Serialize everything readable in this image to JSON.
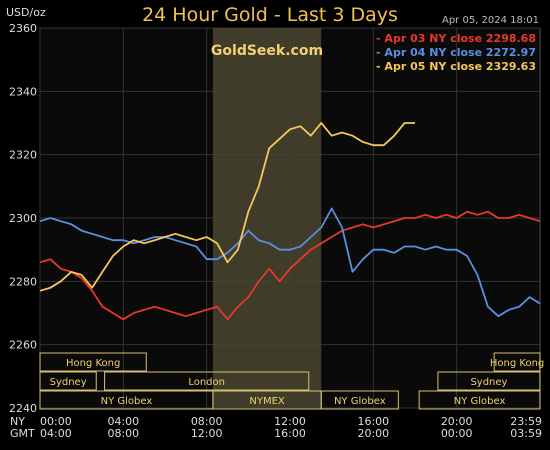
{
  "header": {
    "unit": "USD/oz",
    "title": "24 Hour Gold - Last 3 Days",
    "date": "Apr 05, 2024  18:01"
  },
  "brand": {
    "watermark": "GoldSeek.com"
  },
  "chart_data": {
    "type": "line",
    "title": "24 Hour Gold - Last 3 Days",
    "ylabel": "USD/oz",
    "ylim": [
      2240,
      2360
    ],
    "yticks": [
      2240,
      2260,
      2280,
      2300,
      2320,
      2340,
      2360
    ],
    "grid": true,
    "legend_position": "top-right",
    "x_hours_ny": [
      0,
      24
    ],
    "x_tick_labels": {
      "ny": [
        "00:00",
        "04:00",
        "08:00",
        "12:00",
        "16:00",
        "20:00",
        "23:59"
      ],
      "gmt": [
        "04:00",
        "08:00",
        "12:00",
        "16:00",
        "20:00",
        "00:00",
        "03:59"
      ],
      "ny_label": "NY",
      "gmt_label": "GMT"
    },
    "x_tick_hours": [
      0,
      4,
      8,
      12,
      16,
      20,
      23.983
    ],
    "highlight_hours": [
      8.3,
      13.5
    ],
    "series": [
      {
        "name": "Apr 03 NY close 2298.68",
        "color": "#e8372b",
        "x": [
          0,
          0.5,
          1,
          1.5,
          2,
          2.5,
          3,
          3.5,
          4,
          4.5,
          5,
          5.5,
          6,
          6.5,
          7,
          7.5,
          8,
          8.5,
          9,
          9.5,
          10,
          10.5,
          11,
          11.5,
          12,
          12.5,
          13,
          13.5,
          14,
          14.5,
          15,
          15.5,
          16,
          16.5,
          17,
          17.5,
          18,
          18.5,
          19,
          19.5,
          20,
          20.5,
          21,
          21.5,
          22,
          22.5,
          23,
          23.5,
          24
        ],
        "values": [
          2286,
          2287,
          2284,
          2283,
          2281,
          2277,
          2272,
          2270,
          2268,
          2270,
          2271,
          2272,
          2271,
          2270,
          2269,
          2270,
          2271,
          2272,
          2268,
          2272,
          2275,
          2280,
          2284,
          2280,
          2284,
          2287,
          2290,
          2292,
          2294,
          2296,
          2297,
          2298,
          2297,
          2298,
          2299,
          2300,
          2300,
          2301,
          2300,
          2301,
          2300,
          2302,
          2301,
          2302,
          2300,
          2300,
          2301,
          2300,
          2299
        ]
      },
      {
        "name": "Apr 04 NY close 2272.97",
        "color": "#5b8fe0",
        "x": [
          0,
          0.5,
          1,
          1.5,
          2,
          2.5,
          3,
          3.5,
          4,
          4.5,
          5,
          5.5,
          6,
          6.5,
          7,
          7.5,
          8,
          8.5,
          9,
          9.5,
          10,
          10.5,
          11,
          11.5,
          12,
          12.5,
          13,
          13.5,
          14,
          14.5,
          15,
          15.5,
          16,
          16.5,
          17,
          17.5,
          18,
          18.5,
          19,
          19.5,
          20,
          20.5,
          21,
          21.5,
          22,
          22.5,
          23,
          23.5,
          24
        ],
        "values": [
          2299,
          2300,
          2299,
          2298,
          2296,
          2295,
          2294,
          2293,
          2293,
          2292,
          2293,
          2294,
          2294,
          2293,
          2292,
          2291,
          2287,
          2287,
          2289,
          2292,
          2296,
          2293,
          2292,
          2290,
          2290,
          2291,
          2294,
          2297,
          2303,
          2297,
          2283,
          2287,
          2290,
          2290,
          2289,
          2291,
          2291,
          2290,
          2291,
          2290,
          2290,
          2288,
          2282,
          2272,
          2269,
          2271,
          2272,
          2275,
          2273
        ]
      },
      {
        "name": "Apr 05 NY close 2329.63",
        "color": "#f5c75a",
        "x": [
          0,
          0.5,
          1,
          1.5,
          2,
          2.5,
          3,
          3.5,
          4,
          4.5,
          5,
          5.5,
          6,
          6.5,
          7,
          7.5,
          8,
          8.5,
          9,
          9.5,
          10,
          10.5,
          11,
          11.5,
          12,
          12.5,
          13,
          13.5,
          14,
          14.5,
          15,
          15.5,
          16,
          16.5,
          17,
          17.5,
          18
        ],
        "values": [
          2277,
          2278,
          2280,
          2283,
          2282,
          2278,
          2283,
          2288,
          2291,
          2293,
          2292,
          2293,
          2294,
          2295,
          2294,
          2293,
          2294,
          2292,
          2286,
          2290,
          2302,
          2310,
          2322,
          2325,
          2328,
          2329,
          2326,
          2330,
          2326,
          2327,
          2326,
          2324,
          2323,
          2323,
          2326,
          2330,
          2330
        ]
      }
    ],
    "markets": [
      {
        "label": "Hong Kong",
        "row": 0,
        "start": 0,
        "end": 5.1
      },
      {
        "label": "Hong Kong",
        "row": 0,
        "start": 21.8,
        "end": 24
      },
      {
        "label": "Sydney",
        "row": 1,
        "start": 0,
        "end": 2.7
      },
      {
        "label": "London",
        "row": 1,
        "start": 3.1,
        "end": 12.9
      },
      {
        "label": "Sydney",
        "row": 1,
        "start": 19.1,
        "end": 24
      },
      {
        "label": "NY Globex",
        "row": 2,
        "start": 0,
        "end": 8.3
      },
      {
        "label": "NYMEX",
        "row": 2,
        "start": 8.3,
        "end": 13.5
      },
      {
        "label": "NY Globex",
        "row": 2,
        "start": 13.5,
        "end": 17.2
      },
      {
        "label": "NY Globex",
        "row": 2,
        "start": 18.2,
        "end": 24
      }
    ]
  }
}
